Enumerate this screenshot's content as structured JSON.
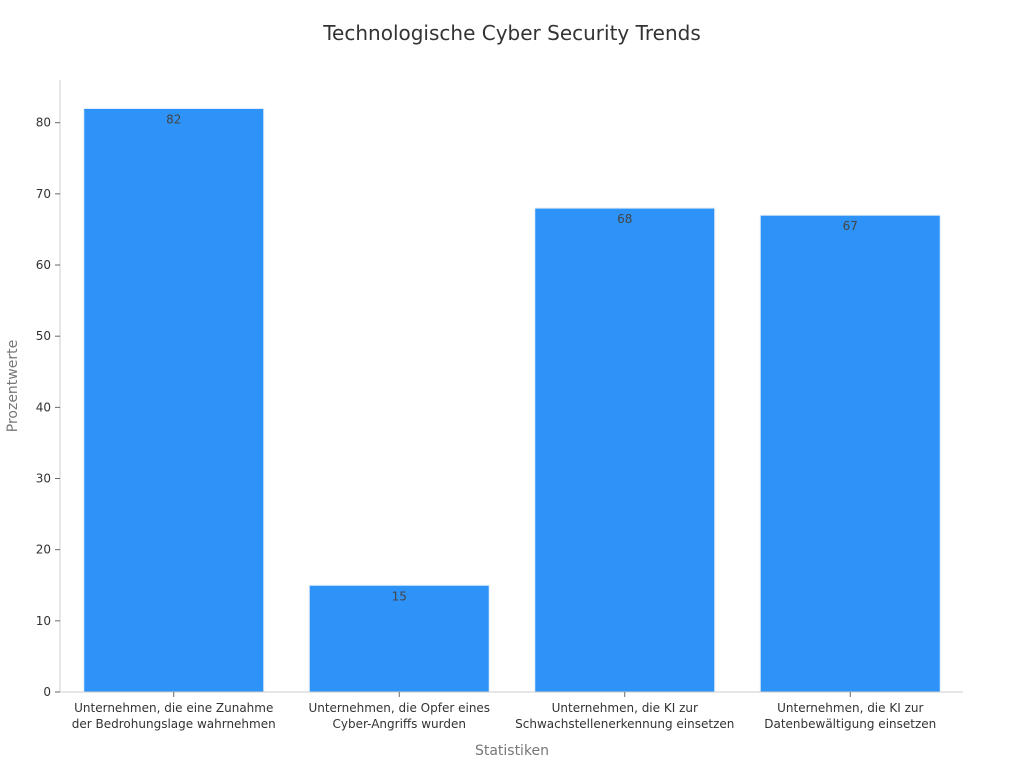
{
  "chart_data": {
    "type": "bar",
    "title": "Technologische Cyber Security Trends",
    "xlabel": "Statistiken",
    "ylabel": "Prozentwerte",
    "categories": [
      [
        "Unternehmen, die eine Zunahme",
        "der Bedrohungslage wahrnehmen"
      ],
      [
        "Unternehmen, die Opfer eines",
        "Cyber-Angriffs wurden"
      ],
      [
        "Unternehmen, die KI zur",
        "Schwachstellenerkennung einsetzen"
      ],
      [
        "Unternehmen, die KI zur",
        "Datenbewältigung einsetzen"
      ]
    ],
    "values": [
      82,
      15,
      68,
      67
    ],
    "ylim": [
      0,
      86
    ],
    "yticks": [
      0,
      10,
      20,
      30,
      40,
      50,
      60,
      70,
      80
    ],
    "grid": false,
    "legend": "none",
    "colors": {
      "bar": "#2e93f8",
      "bar_edge": "#e6f0fb"
    }
  }
}
